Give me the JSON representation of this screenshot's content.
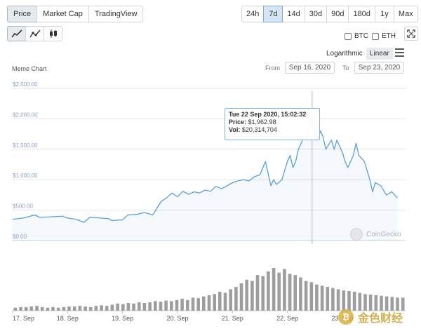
{
  "tabs": {
    "type": [
      "Price",
      "Market Cap",
      "TradingView"
    ],
    "range": [
      "24h",
      "7d",
      "14d",
      "30d",
      "90d",
      "180d",
      "1y",
      "Max"
    ],
    "active_type": "Price",
    "active_range": "7d",
    "style_icons": [
      "line-chart-icon",
      "line-points-icon",
      "candlestick-icon"
    ]
  },
  "compare": {
    "btc": "BTC",
    "eth": "ETH"
  },
  "scale": {
    "log": "Logarithmic",
    "linear": "Linear",
    "active": "Linear"
  },
  "chart_title": "Meme Chart",
  "dates": {
    "from_label": "From",
    "from": "Sep 16, 2020",
    "to_label": "To",
    "to": "Sep 23, 2020"
  },
  "tooltip": {
    "title": "Tue 22 Sep 2020, 15:02:32",
    "price_label": "Price:",
    "price": "$1,962.98",
    "vol_label": "Vol:",
    "vol": "$20,314,704"
  },
  "watermark": "CoinGecko",
  "stamp": "金色财经",
  "colors": {
    "line": "#5aa0d8",
    "volume": "#9e9e9e",
    "grid": "#e6e6e6",
    "accent": "#7cb5ec"
  },
  "chart_data": {
    "type": "line",
    "title": "Meme Chart",
    "y_ticks": [
      "$0.00",
      "$500.00",
      "$1,000.00",
      "$1,500.00",
      "$2,000.00",
      "$2,500.00"
    ],
    "ylim": [
      0,
      2500
    ],
    "x_ticks": [
      "17. Sep",
      "18. Sep",
      "19. Sep",
      "20. Sep",
      "21. Sep",
      "22. Sep",
      "23. Sep"
    ],
    "xlim": [
      0,
      7.15
    ],
    "series": [
      {
        "x": [
          0,
          0.2,
          0.4,
          0.5,
          0.7,
          0.9,
          1.0,
          1.15,
          1.3,
          1.4,
          1.6,
          1.75,
          1.8,
          2.0,
          2.1,
          2.25,
          2.4,
          2.55,
          2.7,
          2.8,
          2.9,
          3.0,
          3.1,
          3.2,
          3.3,
          3.4,
          3.5,
          3.6,
          3.7,
          3.8,
          3.9,
          4.0,
          4.1,
          4.2,
          4.3,
          4.4,
          4.5,
          4.6,
          4.7,
          4.75,
          4.8,
          4.9,
          5.0,
          5.05,
          5.1,
          5.15,
          5.2,
          5.3,
          5.35,
          5.4,
          5.45,
          5.5,
          5.55,
          5.6,
          5.65,
          5.7,
          5.8,
          5.85,
          5.9,
          6.0,
          6.05,
          6.1,
          6.2,
          6.25,
          6.3,
          6.4,
          6.5,
          6.55,
          6.6,
          6.7,
          6.8,
          6.9,
          7.0
        ],
        "y": [
          350,
          370,
          420,
          380,
          390,
          400,
          370,
          350,
          300,
          380,
          370,
          360,
          330,
          340,
          420,
          430,
          460,
          420,
          640,
          700,
          780,
          720,
          810,
          760,
          800,
          780,
          830,
          810,
          890,
          850,
          900,
          950,
          980,
          1000,
          980,
          1050,
          1080,
          1300,
          900,
          1000,
          920,
          1000,
          1300,
          1400,
          1200,
          1300,
          1500,
          1700,
          1800,
          1850,
          1962.98,
          1800,
          1650,
          1800,
          1700,
          1500,
          1650,
          1500,
          1650,
          1450,
          1300,
          1200,
          1400,
          1600,
          1400,
          1300,
          1000,
          800,
          950,
          900,
          750,
          800,
          700
        ]
      }
    ],
    "volume": [
      5,
      6,
      6,
      7,
      8,
      6,
      5,
      6,
      5,
      6,
      7,
      7,
      8,
      7,
      6,
      8,
      9,
      8,
      10,
      12,
      11,
      13,
      12,
      14,
      13,
      14,
      16,
      15,
      17,
      16,
      18,
      20,
      18,
      22,
      21,
      24,
      26,
      28,
      32,
      30,
      36,
      40,
      46,
      52,
      50,
      60,
      58,
      66,
      72,
      64,
      70,
      62,
      60,
      56,
      50,
      48,
      44,
      42,
      40,
      38,
      36,
      34,
      33,
      32,
      30,
      28,
      27,
      26,
      25,
      24,
      23,
      22,
      22
    ]
  }
}
